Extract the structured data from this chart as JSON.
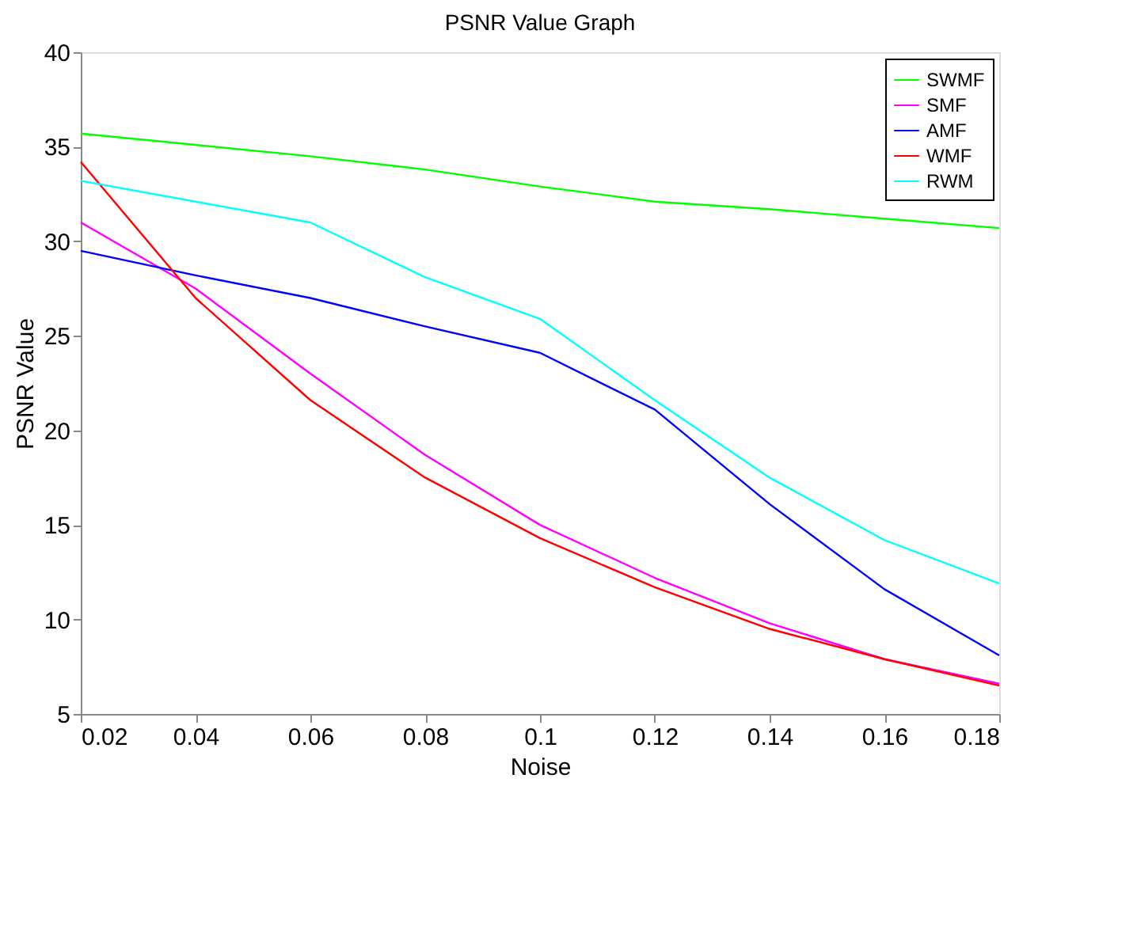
{
  "chart_data": {
    "type": "line",
    "title": "PSNR Value Graph",
    "xlabel": "Noise",
    "ylabel": "PSNR Value",
    "x": [
      0.02,
      0.04,
      0.06,
      0.08,
      0.1,
      0.12,
      0.14,
      0.16,
      0.18
    ],
    "series": [
      {
        "name": "SWMF",
        "color": "#00ff00",
        "values": [
          35.7,
          35.1,
          34.5,
          33.8,
          32.9,
          32.1,
          31.7,
          31.2,
          30.7
        ]
      },
      {
        "name": "SMF",
        "color": "#ff00ff",
        "values": [
          31.0,
          27.5,
          23.0,
          18.7,
          15.0,
          12.2,
          9.8,
          7.9,
          6.6
        ]
      },
      {
        "name": "AMF",
        "color": "#0000ff",
        "values": [
          29.5,
          28.2,
          27.0,
          25.5,
          24.1,
          21.1,
          16.1,
          11.6,
          8.1
        ]
      },
      {
        "name": "WMF",
        "color": "#ff0000",
        "values": [
          34.2,
          27.0,
          21.6,
          17.5,
          14.3,
          11.7,
          9.5,
          7.9,
          6.5
        ]
      },
      {
        "name": "RWM",
        "color": "#00ffff",
        "values": [
          33.2,
          32.1,
          31.0,
          28.1,
          25.9,
          21.6,
          17.5,
          14.2,
          11.9
        ]
      }
    ],
    "xlim": [
      0.02,
      0.18
    ],
    "xticks": [
      0.02,
      0.04,
      0.06,
      0.08,
      0.1,
      0.12,
      0.14,
      0.16,
      0.18
    ],
    "ylim": [
      5,
      40
    ],
    "yticks": [
      5,
      10,
      15,
      20,
      25,
      30,
      35,
      40
    ],
    "grid": false,
    "legend": "top right",
    "marker": "none",
    "line_style": "solid"
  }
}
